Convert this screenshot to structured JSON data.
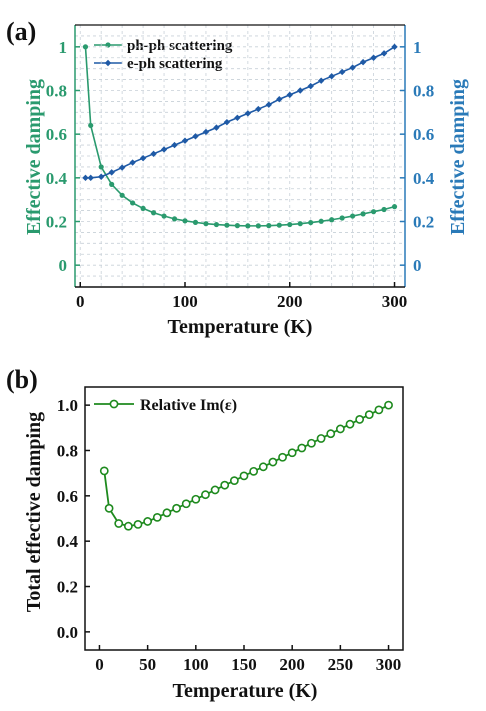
{
  "colors": {
    "green": "#2a9a6e",
    "blue": "#1f5aa6",
    "blue_axis": "#2a7ab8",
    "dark_green": "#1e8a1e",
    "grid": "#c8d0d8",
    "black": "#111111"
  },
  "chart_data": [
    {
      "type": "line",
      "panel_label": "(a)",
      "xlabel": "Temperature (K)",
      "ylabel_left": "Effective damping",
      "ylabel_right": "Effective damping",
      "xlim": [
        -5,
        310
      ],
      "ylim": [
        -0.1,
        1.1
      ],
      "x_ticks": [
        0,
        100,
        200,
        300
      ],
      "y_ticks": [
        0,
        0.2,
        0.4,
        0.6,
        0.8,
        1
      ],
      "y_tick_labels": [
        "0",
        "0.2",
        "0.4",
        "0.6",
        "0.8",
        "1"
      ],
      "grid": true,
      "legend_position": "top-left",
      "series": [
        {
          "name": "ph-ph scattering",
          "axis": "left",
          "marker": "circle",
          "x": [
            5,
            10,
            20,
            30,
            40,
            50,
            60,
            70,
            80,
            90,
            100,
            110,
            120,
            130,
            140,
            150,
            160,
            170,
            180,
            190,
            200,
            210,
            220,
            230,
            240,
            250,
            260,
            270,
            280,
            290,
            300
          ],
          "values": [
            1.0,
            0.64,
            0.45,
            0.37,
            0.32,
            0.285,
            0.26,
            0.24,
            0.225,
            0.212,
            0.203,
            0.196,
            0.19,
            0.186,
            0.183,
            0.181,
            0.18,
            0.18,
            0.181,
            0.183,
            0.186,
            0.19,
            0.195,
            0.201,
            0.208,
            0.216,
            0.225,
            0.235,
            0.245,
            0.255,
            0.268
          ]
        },
        {
          "name": "e-ph scattering",
          "axis": "right",
          "marker": "diamond",
          "x": [
            5,
            10,
            20,
            30,
            40,
            50,
            60,
            70,
            80,
            90,
            100,
            110,
            120,
            130,
            140,
            150,
            160,
            170,
            180,
            190,
            200,
            210,
            220,
            230,
            240,
            250,
            260,
            270,
            280,
            290,
            300
          ],
          "values": [
            0.4,
            0.4,
            0.405,
            0.425,
            0.447,
            0.47,
            0.49,
            0.51,
            0.53,
            0.55,
            0.57,
            0.59,
            0.61,
            0.63,
            0.655,
            0.675,
            0.695,
            0.715,
            0.735,
            0.76,
            0.78,
            0.8,
            0.82,
            0.845,
            0.865,
            0.885,
            0.905,
            0.93,
            0.95,
            0.97,
            1.0
          ]
        }
      ]
    },
    {
      "type": "line",
      "panel_label": "(b)",
      "xlabel": "Temperature (K)",
      "ylabel": "Total effective damping",
      "xlim": [
        -15,
        315
      ],
      "ylim": [
        -0.08,
        1.08
      ],
      "x_ticks": [
        0,
        50,
        100,
        150,
        200,
        250,
        300
      ],
      "y_ticks": [
        0.0,
        0.2,
        0.4,
        0.6,
        0.8,
        1.0
      ],
      "y_tick_labels": [
        "0.0",
        "0.2",
        "0.4",
        "0.6",
        "0.8",
        "1.0"
      ],
      "grid": false,
      "legend_position": "top-left",
      "series": [
        {
          "name": "Relative Im(ε)",
          "marker": "open-circle",
          "x": [
            5,
            10,
            20,
            30,
            40,
            50,
            60,
            70,
            80,
            90,
            100,
            110,
            120,
            130,
            140,
            150,
            160,
            170,
            180,
            190,
            200,
            210,
            220,
            230,
            240,
            250,
            260,
            270,
            280,
            290,
            300
          ],
          "values": [
            0.71,
            0.545,
            0.478,
            0.466,
            0.474,
            0.487,
            0.505,
            0.525,
            0.545,
            0.565,
            0.585,
            0.605,
            0.626,
            0.647,
            0.667,
            0.688,
            0.708,
            0.728,
            0.749,
            0.77,
            0.79,
            0.811,
            0.832,
            0.853,
            0.874,
            0.895,
            0.916,
            0.937,
            0.958,
            0.979,
            1.0
          ]
        }
      ]
    }
  ]
}
